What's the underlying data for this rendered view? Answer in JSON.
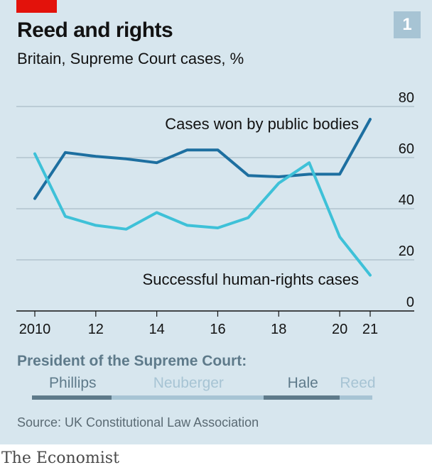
{
  "header": {
    "title": "Reed and rights",
    "subtitle": "Britain, Supreme Court cases, %",
    "chart_number": "1"
  },
  "chart_data": {
    "type": "line",
    "title": "Reed and rights",
    "subtitle": "Britain, Supreme Court cases, %",
    "xlim": [
      2010,
      2021
    ],
    "ylim": [
      0,
      80
    ],
    "y_ticks": [
      0,
      20,
      40,
      60,
      80
    ],
    "x_ticks": [
      {
        "value": 2010,
        "label": "2010"
      },
      {
        "value": 2012,
        "label": "12"
      },
      {
        "value": 2014,
        "label": "14"
      },
      {
        "value": 2016,
        "label": "16"
      },
      {
        "value": 2018,
        "label": "18"
      },
      {
        "value": 2020,
        "label": "20"
      },
      {
        "value": 2021,
        "label": "21"
      }
    ],
    "grid": true,
    "series": [
      {
        "name": "Cases won by public bodies",
        "color": "#1d6fa0",
        "x": [
          2010,
          2011,
          2012,
          2013,
          2014,
          2015,
          2016,
          2017,
          2018,
          2019,
          2020,
          2021
        ],
        "y": [
          44,
          62,
          60.5,
          59.5,
          58,
          63,
          63,
          53,
          52.5,
          53.5,
          53.5,
          75
        ]
      },
      {
        "name": "Successful human-rights cases",
        "color": "#3ec1d8",
        "x": [
          2010,
          2011,
          2012,
          2013,
          2014,
          2015,
          2016,
          2017,
          2018,
          2019,
          2020,
          2021
        ],
        "y": [
          61.5,
          37,
          33.5,
          32,
          38.5,
          33.5,
          32.5,
          36.5,
          50,
          58,
          29,
          14
        ]
      }
    ]
  },
  "presidents": {
    "title": "President of the Supreme Court:",
    "terms": [
      {
        "name": "Phillips",
        "start": 2010,
        "end": 2012.6,
        "color": "#5e7a8a"
      },
      {
        "name": "Neuberger",
        "start": 2012.6,
        "end": 2017.6,
        "color": "#a7c4d4"
      },
      {
        "name": "Hale",
        "start": 2017.6,
        "end": 2020.1,
        "color": "#5e7a8a"
      },
      {
        "name": "Reed",
        "start": 2020.1,
        "end": 2021.1,
        "color": "#a7c4d4"
      }
    ]
  },
  "footer": {
    "source": "Source: UK Constitutional Law Association",
    "brand": "The Economist"
  }
}
